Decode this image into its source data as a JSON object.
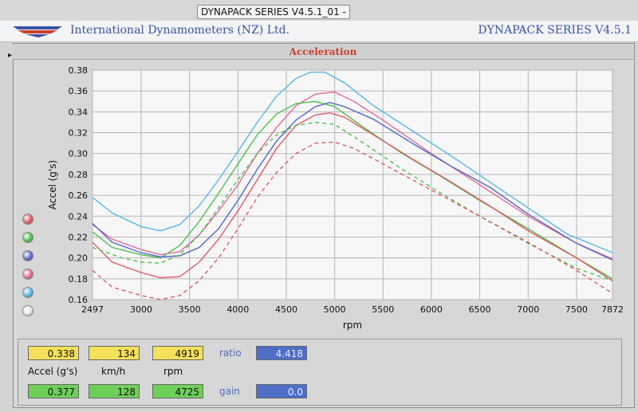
{
  "window": {
    "title": "DYNAPACK SERIES V4.5.1_01  -"
  },
  "brand": {
    "company": "International Dynamometers (NZ) Ltd.",
    "series": "DYNAPACK SERIES V4.5.1",
    "logo_icon": "wing-logo-icon"
  },
  "panel": {
    "title": "Acceleration"
  },
  "legend_buttons": [
    {
      "name": "red",
      "color": "#e05a63"
    },
    {
      "name": "green",
      "color": "#4fbf4f"
    },
    {
      "name": "blue",
      "color": "#5566c8"
    },
    {
      "name": "pink",
      "color": "#e06a9a"
    },
    {
      "name": "cyan",
      "color": "#57b7e8"
    },
    {
      "name": "none",
      "color": "#e8e8e8"
    }
  ],
  "readouts": {
    "row1": {
      "accel": "0.338",
      "kmh": "134",
      "rpm": "4919",
      "ratio_label": "ratio",
      "ratio": "4.418"
    },
    "labels": {
      "accel": "Accel (g's)",
      "kmh": "km/h",
      "rpm": "rpm"
    },
    "row2": {
      "accel": "0.377",
      "kmh": "128",
      "rpm": "4725",
      "gain_label": "gain",
      "gain": "0.0"
    }
  },
  "chart_data": {
    "type": "line",
    "title": "",
    "xlabel": "rpm",
    "ylabel": "Accel (g's)",
    "xlim": [
      2497,
      7872
    ],
    "ylim": [
      0.16,
      0.38
    ],
    "xticks": [
      2497,
      3000,
      3500,
      4000,
      4500,
      5000,
      5500,
      6000,
      6500,
      7000,
      7500,
      7872
    ],
    "yticks": [
      0.16,
      0.18,
      0.2,
      0.22,
      0.24,
      0.26,
      0.28,
      0.3,
      0.32,
      0.34,
      0.36,
      0.38
    ],
    "grid": true,
    "series": [
      {
        "color": "#57b7e8",
        "dash": false,
        "points": [
          [
            2497,
            0.258
          ],
          [
            2700,
            0.243
          ],
          [
            3000,
            0.23
          ],
          [
            3200,
            0.226
          ],
          [
            3400,
            0.232
          ],
          [
            3600,
            0.25
          ],
          [
            3800,
            0.275
          ],
          [
            4000,
            0.302
          ],
          [
            4200,
            0.33
          ],
          [
            4400,
            0.355
          ],
          [
            4600,
            0.372
          ],
          [
            4750,
            0.378
          ],
          [
            4900,
            0.378
          ],
          [
            5100,
            0.368
          ],
          [
            5400,
            0.346
          ],
          [
            5800,
            0.322
          ],
          [
            6200,
            0.298
          ],
          [
            6600,
            0.273
          ],
          [
            7000,
            0.248
          ],
          [
            7400,
            0.223
          ],
          [
            7872,
            0.205
          ]
        ]
      },
      {
        "color": "#e06a9a",
        "dash": false,
        "points": [
          [
            2497,
            0.232
          ],
          [
            2700,
            0.218
          ],
          [
            3000,
            0.208
          ],
          [
            3200,
            0.203
          ],
          [
            3400,
            0.206
          ],
          [
            3600,
            0.222
          ],
          [
            3800,
            0.245
          ],
          [
            4000,
            0.27
          ],
          [
            4200,
            0.3
          ],
          [
            4400,
            0.325
          ],
          [
            4600,
            0.346
          ],
          [
            4800,
            0.357
          ],
          [
            5000,
            0.359
          ],
          [
            5200,
            0.35
          ],
          [
            5500,
            0.332
          ],
          [
            6000,
            0.3
          ],
          [
            6500,
            0.27
          ],
          [
            7000,
            0.24
          ],
          [
            7500,
            0.214
          ],
          [
            7872,
            0.199
          ]
        ]
      },
      {
        "color": "#4fbf4f",
        "dash": false,
        "points": [
          [
            2497,
            0.225
          ],
          [
            2700,
            0.21
          ],
          [
            3000,
            0.203
          ],
          [
            3200,
            0.2
          ],
          [
            3400,
            0.212
          ],
          [
            3600,
            0.235
          ],
          [
            3800,
            0.262
          ],
          [
            4000,
            0.29
          ],
          [
            4200,
            0.318
          ],
          [
            4400,
            0.338
          ],
          [
            4600,
            0.348
          ],
          [
            4800,
            0.35
          ],
          [
            5000,
            0.345
          ],
          [
            5300,
            0.325
          ],
          [
            5700,
            0.3
          ],
          [
            6100,
            0.278
          ],
          [
            6500,
            0.255
          ],
          [
            7000,
            0.228
          ],
          [
            7500,
            0.2
          ],
          [
            7872,
            0.18
          ]
        ]
      },
      {
        "color": "#5566c8",
        "dash": false,
        "points": [
          [
            2497,
            0.233
          ],
          [
            2700,
            0.215
          ],
          [
            3000,
            0.205
          ],
          [
            3200,
            0.201
          ],
          [
            3400,
            0.202
          ],
          [
            3600,
            0.21
          ],
          [
            3800,
            0.228
          ],
          [
            4000,
            0.255
          ],
          [
            4200,
            0.285
          ],
          [
            4400,
            0.312
          ],
          [
            4600,
            0.332
          ],
          [
            4800,
            0.345
          ],
          [
            4950,
            0.349
          ],
          [
            5100,
            0.345
          ],
          [
            5400,
            0.333
          ],
          [
            5800,
            0.31
          ],
          [
            6200,
            0.288
          ],
          [
            6600,
            0.268
          ],
          [
            7000,
            0.242
          ],
          [
            7500,
            0.214
          ],
          [
            7872,
            0.198
          ]
        ]
      },
      {
        "color": "#e05a63",
        "dash": false,
        "points": [
          [
            2497,
            0.215
          ],
          [
            2700,
            0.196
          ],
          [
            3000,
            0.186
          ],
          [
            3200,
            0.181
          ],
          [
            3400,
            0.182
          ],
          [
            3600,
            0.196
          ],
          [
            3800,
            0.218
          ],
          [
            4000,
            0.245
          ],
          [
            4200,
            0.275
          ],
          [
            4400,
            0.305
          ],
          [
            4600,
            0.327
          ],
          [
            4800,
            0.337
          ],
          [
            4950,
            0.339
          ],
          [
            5100,
            0.335
          ],
          [
            5400,
            0.318
          ],
          [
            5800,
            0.295
          ],
          [
            6200,
            0.273
          ],
          [
            6600,
            0.25
          ],
          [
            7000,
            0.226
          ],
          [
            7500,
            0.2
          ],
          [
            7872,
            0.178
          ]
        ]
      },
      {
        "color": "#4fbf4f",
        "dash": true,
        "points": [
          [
            2497,
            0.21
          ],
          [
            2800,
            0.2
          ],
          [
            3000,
            0.196
          ],
          [
            3200,
            0.195
          ],
          [
            3400,
            0.203
          ],
          [
            3600,
            0.222
          ],
          [
            3800,
            0.248
          ],
          [
            4000,
            0.275
          ],
          [
            4200,
            0.3
          ],
          [
            4400,
            0.318
          ],
          [
            4600,
            0.327
          ],
          [
            4800,
            0.33
          ],
          [
            5000,
            0.328
          ],
          [
            5300,
            0.31
          ],
          [
            5700,
            0.285
          ],
          [
            6100,
            0.262
          ],
          [
            6500,
            0.24
          ],
          [
            7000,
            0.214
          ],
          [
            7500,
            0.19
          ],
          [
            7872,
            0.178
          ]
        ]
      },
      {
        "color": "#e05a63",
        "dash": true,
        "points": [
          [
            2497,
            0.188
          ],
          [
            2700,
            0.172
          ],
          [
            3000,
            0.164
          ],
          [
            3200,
            0.16
          ],
          [
            3400,
            0.164
          ],
          [
            3600,
            0.178
          ],
          [
            3800,
            0.2
          ],
          [
            4000,
            0.228
          ],
          [
            4200,
            0.258
          ],
          [
            4400,
            0.282
          ],
          [
            4600,
            0.3
          ],
          [
            4800,
            0.31
          ],
          [
            5000,
            0.311
          ],
          [
            5200,
            0.305
          ],
          [
            5500,
            0.29
          ],
          [
            6000,
            0.265
          ],
          [
            6500,
            0.24
          ],
          [
            7000,
            0.215
          ],
          [
            7500,
            0.188
          ],
          [
            7872,
            0.166
          ]
        ]
      }
    ]
  }
}
